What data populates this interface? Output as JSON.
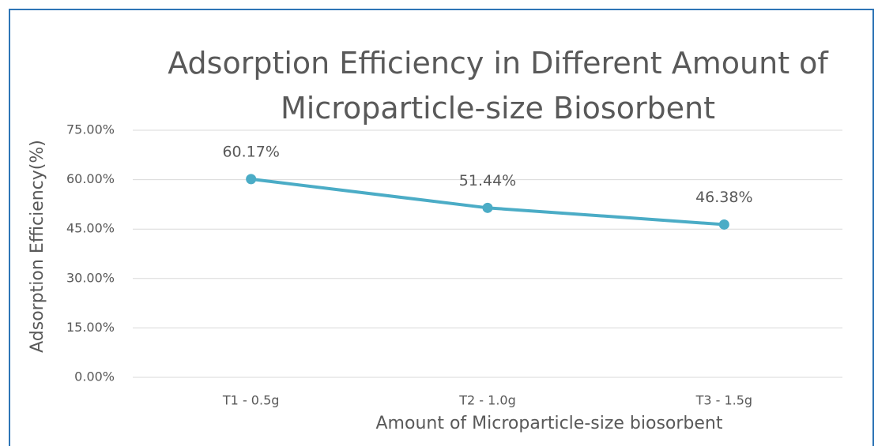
{
  "chart_data": {
    "type": "line",
    "title": "Adsorption Efficiency in Different Amount of Microparticle-size Biosorbent",
    "x_label": "Amount of Microparticle-size biosorbent",
    "y_label": "Adsorption Efficiency(%)",
    "categories": [
      "T1 - 0.5g",
      "T2 - 1.0g",
      "T3 - 1.5g"
    ],
    "series": [
      {
        "name": "Adsorption Efficiency",
        "color": "#4bacc6",
        "values": [
          60.17,
          51.44,
          46.38
        ],
        "value_labels": [
          "60.17%",
          "51.44%",
          "46.38%"
        ]
      }
    ],
    "ylim": [
      0,
      75
    ],
    "yticks": [
      {
        "value": 0,
        "label": "0.00%"
      },
      {
        "value": 15,
        "label": "15.00%"
      },
      {
        "value": 30,
        "label": "30.00%"
      },
      {
        "value": 45,
        "label": "45.00%"
      },
      {
        "value": 60,
        "label": "60.00%"
      },
      {
        "value": 75,
        "label": "75.00%"
      }
    ],
    "grid": true,
    "legend": false
  }
}
